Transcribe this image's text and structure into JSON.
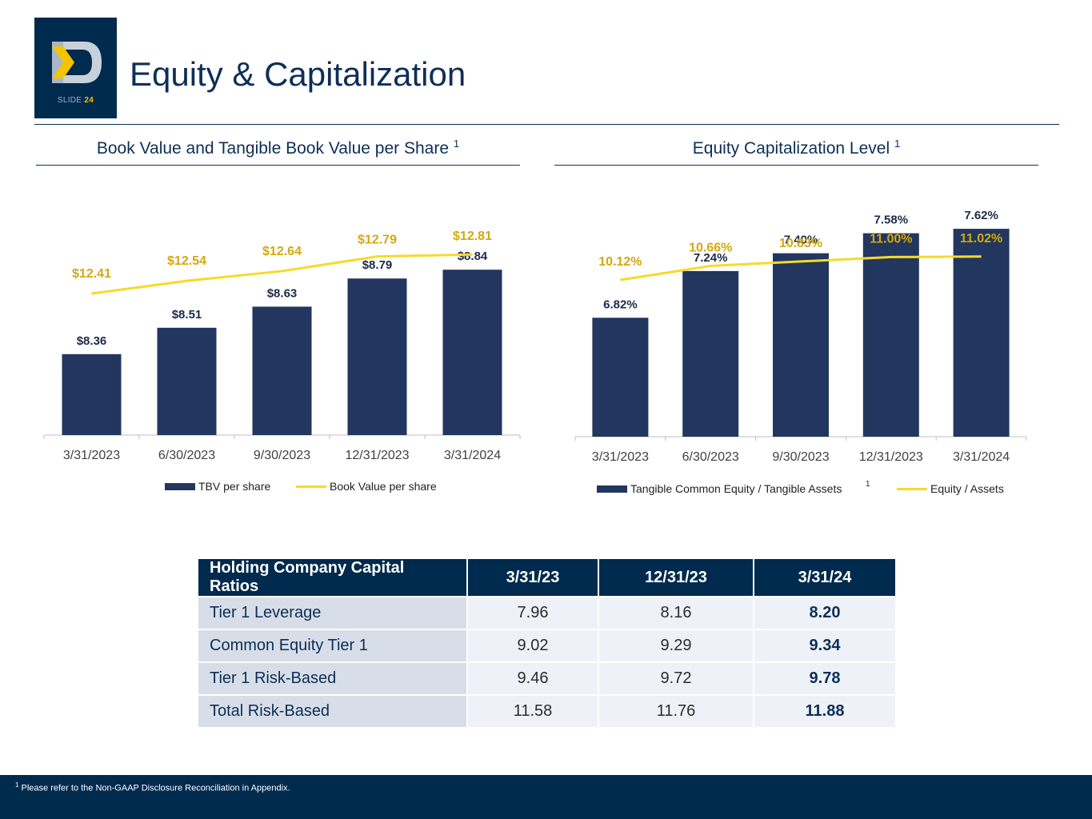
{
  "logo": {
    "slide_label": "SLIDE",
    "slide_number": "24"
  },
  "page_title": "Equity & Capitalization",
  "colors": {
    "navy": "#22365f",
    "gold_line": "#f6da2a",
    "gold_label": "#d4a80f",
    "header": "#002a4e"
  },
  "chart_data": [
    {
      "type": "bar",
      "title": "Book Value and Tangible Book Value per Share",
      "title_sup": "1",
      "categories": [
        "3/31/2023",
        "6/30/2023",
        "9/30/2023",
        "12/31/2023",
        "3/31/2024"
      ],
      "series": [
        {
          "name": "TBV per share",
          "type": "bar",
          "values": [
            8.36,
            8.51,
            8.63,
            8.79,
            8.84
          ],
          "labels": [
            "$8.36",
            "$8.51",
            "$8.63",
            "$8.79",
            "$8.84"
          ]
        },
        {
          "name": "Book Value per share",
          "type": "line",
          "values": [
            12.41,
            12.54,
            12.64,
            12.79,
            12.81
          ],
          "labels": [
            "$12.41",
            "$12.54",
            "$12.64",
            "$12.79",
            "$12.81"
          ]
        }
      ],
      "legend": "bottom",
      "legend_sup": "",
      "grid": false
    },
    {
      "type": "bar",
      "title": "Equity Capitalization Level",
      "title_sup": "1",
      "categories": [
        "3/31/2023",
        "6/30/2023",
        "9/30/2023",
        "12/31/2023",
        "3/31/2024"
      ],
      "series": [
        {
          "name": "Tangible Common Equity / Tangible Assets",
          "type": "bar",
          "values": [
            6.82,
            7.24,
            7.4,
            7.58,
            7.62
          ],
          "labels": [
            "6.82%",
            "7.24%",
            "7.40%",
            "7.58%",
            "7.62%"
          ]
        },
        {
          "name": "Equity / Assets",
          "type": "line",
          "values": [
            10.12,
            10.66,
            10.83,
            11.0,
            11.02
          ],
          "labels": [
            "10.12%",
            "10.66%",
            "10.83%",
            "11.00%",
            "11.02%"
          ]
        }
      ],
      "legend": "bottom",
      "legend_sup": "1",
      "grid": false
    }
  ],
  "capital_table": {
    "headers": [
      "Holding Company Capital Ratios",
      "3/31/23",
      "12/31/23",
      "3/31/24"
    ],
    "rows": [
      [
        "Tier 1 Leverage",
        "7.96",
        "8.16",
        "8.20"
      ],
      [
        "Common Equity Tier 1",
        "9.02",
        "9.29",
        "9.34"
      ],
      [
        "Tier 1 Risk-Based",
        "9.46",
        "9.72",
        "9.78"
      ],
      [
        "Total Risk-Based",
        "11.58",
        "11.76",
        "11.88"
      ]
    ]
  },
  "footnote": {
    "sup": "1",
    "text": "Please refer to the Non-GAAP Disclosure Reconciliation in Appendix."
  }
}
